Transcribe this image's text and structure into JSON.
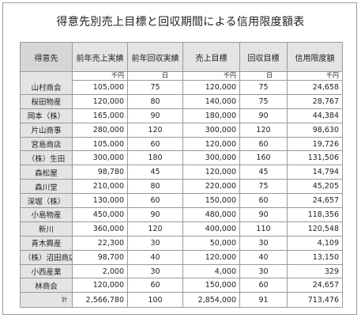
{
  "title": "得意先別売上目標と回収期間による信用限度額表",
  "headers": [
    "得意先",
    "前年売上実績",
    "前年回収実績",
    "売上目標",
    "回収目標",
    "信用限度額"
  ],
  "units": [
    "千円",
    "日",
    "千円",
    "日",
    "千円"
  ],
  "rows": [
    {
      "name": "山村商会",
      "prev_sales": "105,000",
      "prev_days": "75",
      "target_sales": "120,000",
      "target_days": "75",
      "credit": "24,658"
    },
    {
      "name": "桜田物産",
      "prev_sales": "120,000",
      "prev_days": "80",
      "target_sales": "140,000",
      "target_days": "75",
      "credit": "28,767"
    },
    {
      "name": "岡本（株）",
      "prev_sales": "165,000",
      "prev_days": "90",
      "target_sales": "180,000",
      "target_days": "90",
      "credit": "44,384"
    },
    {
      "name": "片山商事",
      "prev_sales": "280,000",
      "prev_days": "120",
      "target_sales": "300,000",
      "target_days": "120",
      "credit": "98,630"
    },
    {
      "name": "宮島商店",
      "prev_sales": "105,000",
      "prev_days": "60",
      "target_sales": "120,000",
      "target_days": "60",
      "credit": "19,726"
    },
    {
      "name": "（株）生田",
      "prev_sales": "300,000",
      "prev_days": "180",
      "target_sales": "300,000",
      "target_days": "160",
      "credit": "131,506"
    },
    {
      "name": "森松屋",
      "prev_sales": "98,780",
      "prev_days": "45",
      "target_sales": "120,000",
      "target_days": "45",
      "credit": "14,794"
    },
    {
      "name": "森川堂",
      "prev_sales": "210,000",
      "prev_days": "80",
      "target_sales": "220,000",
      "target_days": "75",
      "credit": "45,205"
    },
    {
      "name": "深堀（株）",
      "prev_sales": "130,000",
      "prev_days": "60",
      "target_sales": "150,000",
      "target_days": "60",
      "credit": "24,657"
    },
    {
      "name": "小島物産",
      "prev_sales": "450,000",
      "prev_days": "90",
      "target_sales": "480,000",
      "target_days": "90",
      "credit": "118,356"
    },
    {
      "name": "新川",
      "prev_sales": "360,000",
      "prev_days": "120",
      "target_sales": "400,000",
      "target_days": "110",
      "credit": "120,548"
    },
    {
      "name": "青木興産",
      "prev_sales": "22,300",
      "prev_days": "30",
      "target_sales": "50,000",
      "target_days": "30",
      "credit": "4,109"
    },
    {
      "name": "（株）沼田商店",
      "prev_sales": "98,700",
      "prev_days": "40",
      "target_sales": "120,000",
      "target_days": "40",
      "credit": "13,150"
    },
    {
      "name": "小西産業",
      "prev_sales": "2,000",
      "prev_days": "30",
      "target_sales": "4,000",
      "target_days": "30",
      "credit": "329"
    },
    {
      "name": "林商会",
      "prev_sales": "120,000",
      "prev_days": "60",
      "target_sales": "150,000",
      "target_days": "60",
      "credit": "24,657"
    }
  ],
  "total": {
    "label": "計",
    "prev_sales": "2,566,780",
    "prev_days": "100",
    "target_sales": "2,854,000",
    "target_days": "91",
    "credit": "713,476"
  }
}
